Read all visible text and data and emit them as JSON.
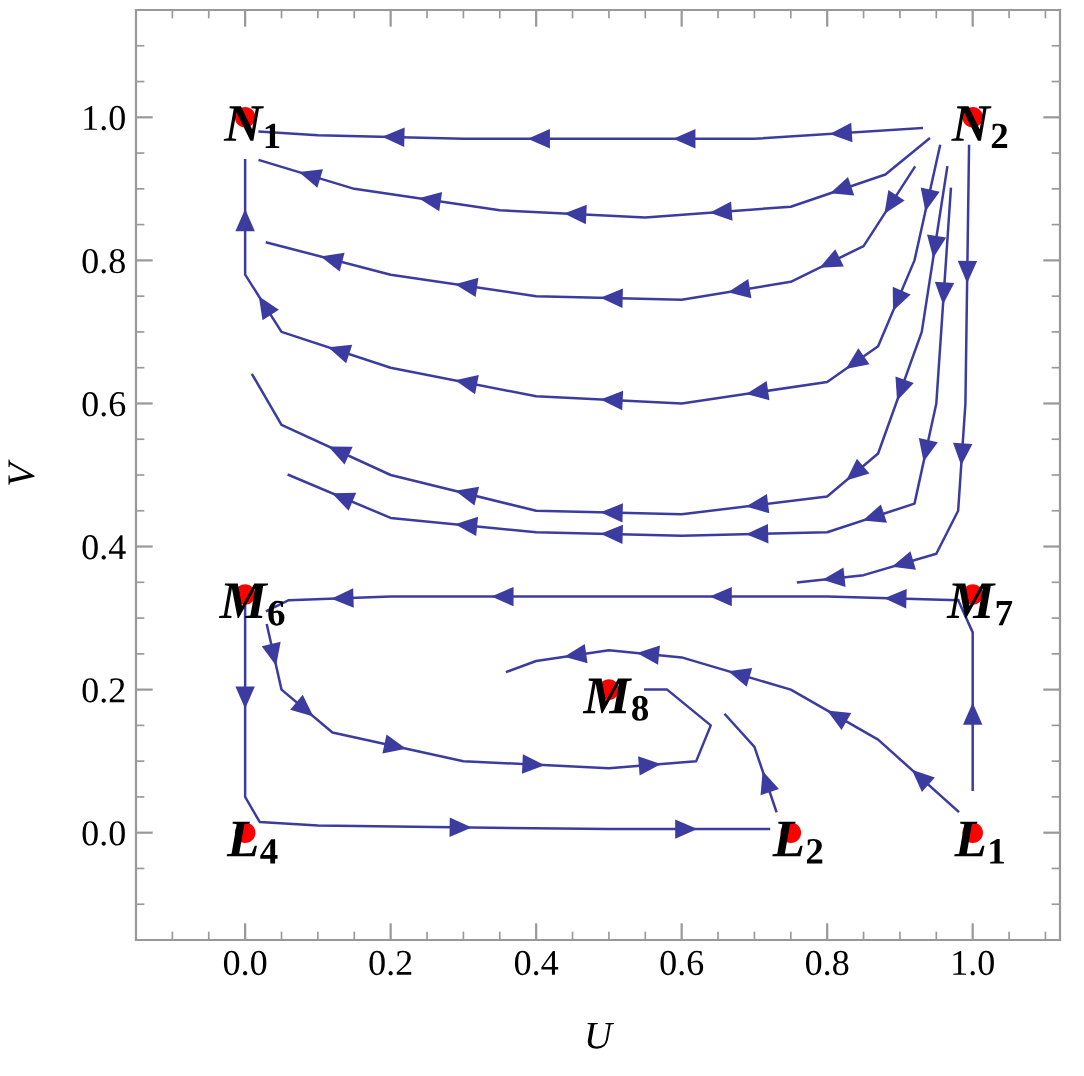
{
  "chart_data": {
    "type": "line",
    "xlabel": "U",
    "ylabel": "V",
    "xlim": [
      -0.15,
      1.12
    ],
    "ylim": [
      -0.15,
      1.15
    ],
    "xticks": [
      {
        "value": 0,
        "label": "0.0"
      },
      0.2,
      0.4,
      0.6,
      0.8,
      {
        "value": 1,
        "label": "1.0"
      }
    ],
    "yticks": [
      {
        "value": 0,
        "label": "0.0"
      },
      0.2,
      0.4,
      0.6,
      0.8,
      {
        "value": 1,
        "label": "1.0"
      }
    ],
    "grid": false,
    "legend": false,
    "marker": "none",
    "line_style": "solid",
    "series": [
      {
        "color": "#3c3ca0",
        "x": [
          0.93,
          0.7,
          0.5,
          0.3,
          0.1,
          0.02
        ],
        "values": [
          0.985,
          0.97,
          0.97,
          0.97,
          0.975,
          0.98
        ]
      },
      {
        "color": "#3c3ca0",
        "x": [
          0.94,
          0.88,
          0.75,
          0.55,
          0.35,
          0.15,
          0.02
        ],
        "values": [
          0.97,
          0.92,
          0.875,
          0.86,
          0.87,
          0.9,
          0.94
        ]
      },
      {
        "color": "#3c3ca0",
        "x": [
          0.92,
          0.85,
          0.75,
          0.6,
          0.4,
          0.2,
          0.03
        ],
        "values": [
          0.93,
          0.82,
          0.77,
          0.745,
          0.75,
          0.78,
          0.825
        ]
      },
      {
        "color": "#3c3ca0",
        "x": [
          0.955,
          0.92,
          0.87,
          0.8,
          0.6,
          0.4,
          0.2,
          0.05,
          0.0,
          0.0
        ],
        "values": [
          0.96,
          0.8,
          0.68,
          0.63,
          0.6,
          0.61,
          0.65,
          0.7,
          0.78,
          0.94
        ]
      },
      {
        "color": "#3c3ca0",
        "x": [
          0.965,
          0.93,
          0.87,
          0.8,
          0.6,
          0.4,
          0.2,
          0.05,
          0.01
        ],
        "values": [
          0.93,
          0.7,
          0.53,
          0.47,
          0.445,
          0.45,
          0.5,
          0.57,
          0.64
        ]
      },
      {
        "color": "#3c3ca0",
        "x": [
          0.97,
          0.95,
          0.92,
          0.8,
          0.6,
          0.4,
          0.2,
          0.06
        ],
        "values": [
          0.9,
          0.6,
          0.46,
          0.42,
          0.415,
          0.42,
          0.44,
          0.5
        ]
      },
      {
        "color": "#3c3ca0",
        "x": [
          0.995,
          0.99,
          0.98,
          0.95,
          0.85,
          0.76
        ],
        "values": [
          0.96,
          0.6,
          0.45,
          0.39,
          0.36,
          0.35
        ]
      },
      {
        "color": "#3c3ca0",
        "x": [
          0.98,
          0.8,
          0.5,
          0.2,
          0.06,
          0.03
        ],
        "values": [
          0.325,
          0.33,
          0.33,
          0.33,
          0.325,
          0.31
        ]
      },
      {
        "color": "#3c3ca0",
        "x": [
          0.0,
          0.0,
          0.02,
          0.1,
          0.5,
          0.72
        ],
        "values": [
          0.32,
          0.05,
          0.015,
          0.01,
          0.005,
          0.005
        ]
      },
      {
        "color": "#3c3ca0",
        "x": [
          0.03,
          0.05,
          0.12,
          0.3,
          0.5,
          0.62,
          0.64,
          0.58,
          0.55
        ],
        "values": [
          0.29,
          0.2,
          0.14,
          0.1,
          0.09,
          0.1,
          0.15,
          0.2,
          0.2
        ]
      },
      {
        "color": "#3c3ca0",
        "x": [
          0.73,
          0.7,
          0.66
        ],
        "values": [
          0.03,
          0.12,
          0.165
        ]
      },
      {
        "color": "#3c3ca0",
        "x": [
          0.98,
          0.87,
          0.75,
          0.6,
          0.5,
          0.4,
          0.36
        ],
        "values": [
          0.03,
          0.13,
          0.2,
          0.245,
          0.255,
          0.24,
          0.225
        ]
      },
      {
        "color": "#3c3ca0",
        "x": [
          1.0,
          1.0,
          0.98
        ],
        "values": [
          0.06,
          0.28,
          0.325
        ]
      },
      {
        "type": "scatter",
        "marker": "circle",
        "color": "#ff0000",
        "x": [
          0,
          1,
          0,
          1,
          0.5,
          0,
          0.75,
          1
        ],
        "values": [
          1,
          1,
          0.333,
          0.333,
          0.2,
          0,
          0,
          0
        ]
      }
    ],
    "annotations": [
      {
        "text": "N$_{1}$",
        "x": 0,
        "y": 1
      },
      {
        "text": "N$_{2}$",
        "x": 1,
        "y": 1
      },
      {
        "text": "M$_{6}$",
        "x": 0,
        "y": 0.333
      },
      {
        "text": "M$_{7}$",
        "x": 1,
        "y": 0.333
      },
      {
        "text": "M$_{8}$",
        "x": 0.5,
        "y": 0.2
      },
      {
        "text": "L$_{4}$",
        "x": 0,
        "y": 0
      },
      {
        "text": "L$_{2}$",
        "x": 0.75,
        "y": 0
      },
      {
        "text": "L$_{1}$",
        "x": 1,
        "y": 0
      }
    ]
  }
}
